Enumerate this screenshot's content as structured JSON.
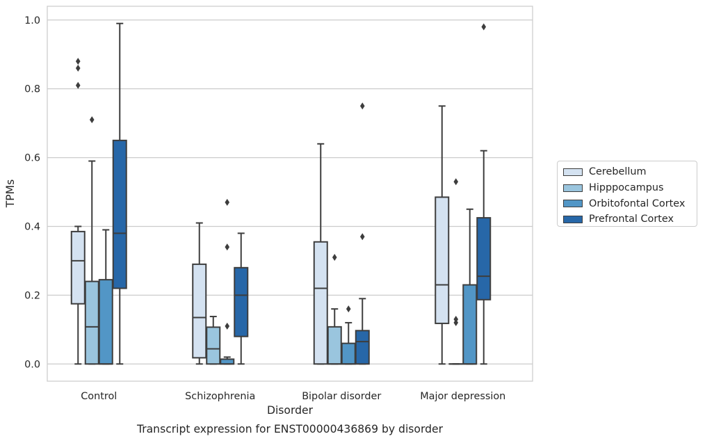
{
  "chart_data": {
    "type": "box",
    "xlabel": "Disorder",
    "ylabel": "TPMs",
    "caption": "Transcript expression for ENST00000436869 by disorder",
    "ylim": [
      -0.05,
      1.04
    ],
    "yticks": [
      "0.0",
      "0.2",
      "0.4",
      "0.6",
      "0.8",
      "1.0"
    ],
    "grid": "horizontal",
    "legend_position": "right",
    "categories": [
      "Control",
      "Schizophrenia",
      "Bipolar disorder",
      "Major depression"
    ],
    "series": [
      {
        "name": "Cerebellum",
        "color": "#d4e2f1",
        "boxes": [
          {
            "whislo": 0.0,
            "q1": 0.175,
            "med": 0.3,
            "q3": 0.385,
            "whishi": 0.4,
            "fliers": [
              0.81,
              0.86,
              0.88
            ]
          },
          {
            "whislo": 0.0,
            "q1": 0.018,
            "med": 0.135,
            "q3": 0.29,
            "whishi": 0.41,
            "fliers": []
          },
          {
            "whislo": 0.0,
            "q1": 0.0,
            "med": 0.22,
            "q3": 0.355,
            "whishi": 0.64,
            "fliers": []
          },
          {
            "whislo": 0.0,
            "q1": 0.118,
            "med": 0.23,
            "q3": 0.485,
            "whishi": 0.75,
            "fliers": []
          }
        ]
      },
      {
        "name": "Hipppocampus",
        "color": "#9ac5de",
        "boxes": [
          {
            "whislo": 0.0,
            "q1": 0.0,
            "med": 0.108,
            "q3": 0.24,
            "whishi": 0.59,
            "fliers": [
              0.71
            ]
          },
          {
            "whislo": 0.0,
            "q1": 0.0,
            "med": 0.044,
            "q3": 0.107,
            "whishi": 0.138,
            "fliers": []
          },
          {
            "whislo": 0.0,
            "q1": 0.0,
            "med": 0.0,
            "q3": 0.108,
            "whishi": 0.16,
            "fliers": [
              0.31
            ]
          },
          {
            "whislo": 0.0,
            "q1": 0.0,
            "med": 0.0,
            "q3": 0.0,
            "whishi": 0.0,
            "fliers": [
              0.12,
              0.13,
              0.53
            ]
          }
        ]
      },
      {
        "name": "Orbitofontal Cortex",
        "color": "#5296c6",
        "boxes": [
          {
            "whislo": 0.0,
            "q1": 0.0,
            "med": 0.0,
            "q3": 0.245,
            "whishi": 0.39,
            "fliers": []
          },
          {
            "whislo": 0.0,
            "q1": 0.0,
            "med": 0.0,
            "q3": 0.014,
            "whishi": 0.02,
            "fliers": [
              0.11,
              0.34,
              0.47
            ]
          },
          {
            "whislo": 0.0,
            "q1": 0.0,
            "med": 0.0,
            "q3": 0.06,
            "whishi": 0.12,
            "fliers": [
              0.16
            ]
          },
          {
            "whislo": 0.0,
            "q1": 0.0,
            "med": 0.0,
            "q3": 0.23,
            "whishi": 0.45,
            "fliers": []
          }
        ]
      },
      {
        "name": "Prefrontal Cortex",
        "color": "#2767a8",
        "boxes": [
          {
            "whislo": 0.0,
            "q1": 0.22,
            "med": 0.38,
            "q3": 0.65,
            "whishi": 0.99,
            "fliers": []
          },
          {
            "whislo": 0.0,
            "q1": 0.08,
            "med": 0.2,
            "q3": 0.28,
            "whishi": 0.38,
            "fliers": []
          },
          {
            "whislo": 0.0,
            "q1": 0.0,
            "med": 0.065,
            "q3": 0.097,
            "whishi": 0.19,
            "fliers": [
              0.37,
              0.75
            ]
          },
          {
            "whislo": 0.0,
            "q1": 0.187,
            "med": 0.255,
            "q3": 0.425,
            "whishi": 0.62,
            "fliers": [
              0.98
            ]
          }
        ]
      }
    ]
  }
}
